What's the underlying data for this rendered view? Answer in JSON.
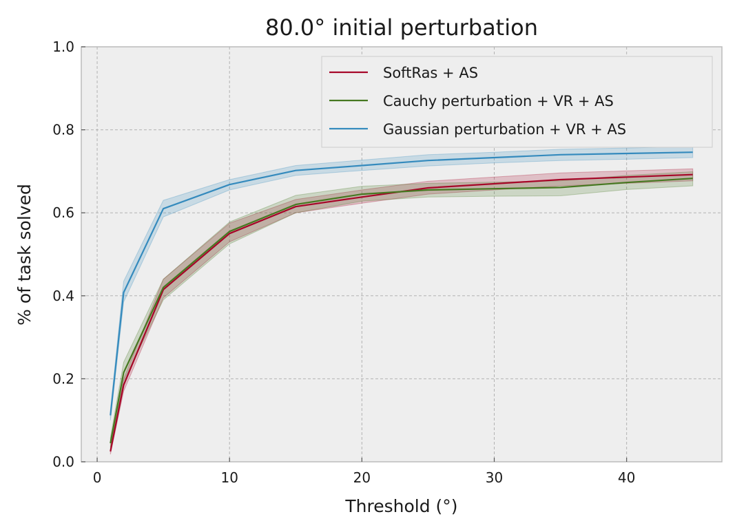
{
  "chart_data": {
    "type": "line",
    "title": "80.0° initial perturbation",
    "xlabel": "Threshold (°)",
    "ylabel": "% of task solved",
    "xlim": [
      -1.2,
      47.2
    ],
    "ylim": [
      0.0,
      1.0
    ],
    "xticks": [
      0,
      10,
      20,
      30,
      40
    ],
    "yticks": [
      0.0,
      0.2,
      0.4,
      0.6,
      0.8,
      1.0
    ],
    "grid": true,
    "legend_position": "top-right",
    "x": [
      1,
      2,
      5,
      10,
      15,
      20,
      25,
      30,
      35,
      40,
      45
    ],
    "series": [
      {
        "name": "SoftRas + AS",
        "color": "#A60628",
        "values": [
          0.025,
          0.185,
          0.415,
          0.55,
          0.615,
          0.638,
          0.66,
          0.67,
          0.68,
          0.686,
          0.692
        ],
        "lower": [
          0.018,
          0.17,
          0.395,
          0.53,
          0.6,
          0.623,
          0.645,
          0.655,
          0.665,
          0.671,
          0.677
        ],
        "upper": [
          0.035,
          0.2,
          0.44,
          0.575,
          0.632,
          0.655,
          0.676,
          0.686,
          0.696,
          0.701,
          0.706
        ]
      },
      {
        "name": "Cauchy perturbation + VR + AS",
        "color": "#467821",
        "values": [
          0.045,
          0.215,
          0.42,
          0.555,
          0.62,
          0.645,
          0.655,
          0.658,
          0.661,
          0.673,
          0.683
        ],
        "lower": [
          0.035,
          0.195,
          0.39,
          0.525,
          0.6,
          0.628,
          0.638,
          0.64,
          0.641,
          0.656,
          0.665
        ],
        "upper": [
          0.058,
          0.24,
          0.44,
          0.578,
          0.642,
          0.664,
          0.671,
          0.674,
          0.677,
          0.69,
          0.699
        ]
      },
      {
        "name": "Gaussian perturbation + VR + AS",
        "color": "#348ABD",
        "values": [
          0.112,
          0.408,
          0.61,
          0.668,
          0.702,
          0.714,
          0.726,
          0.733,
          0.74,
          0.743,
          0.746
        ],
        "lower": [
          0.1,
          0.385,
          0.59,
          0.655,
          0.69,
          0.702,
          0.713,
          0.72,
          0.726,
          0.729,
          0.733
        ],
        "upper": [
          0.125,
          0.435,
          0.63,
          0.68,
          0.714,
          0.727,
          0.74,
          0.746,
          0.753,
          0.756,
          0.76
        ]
      }
    ]
  }
}
